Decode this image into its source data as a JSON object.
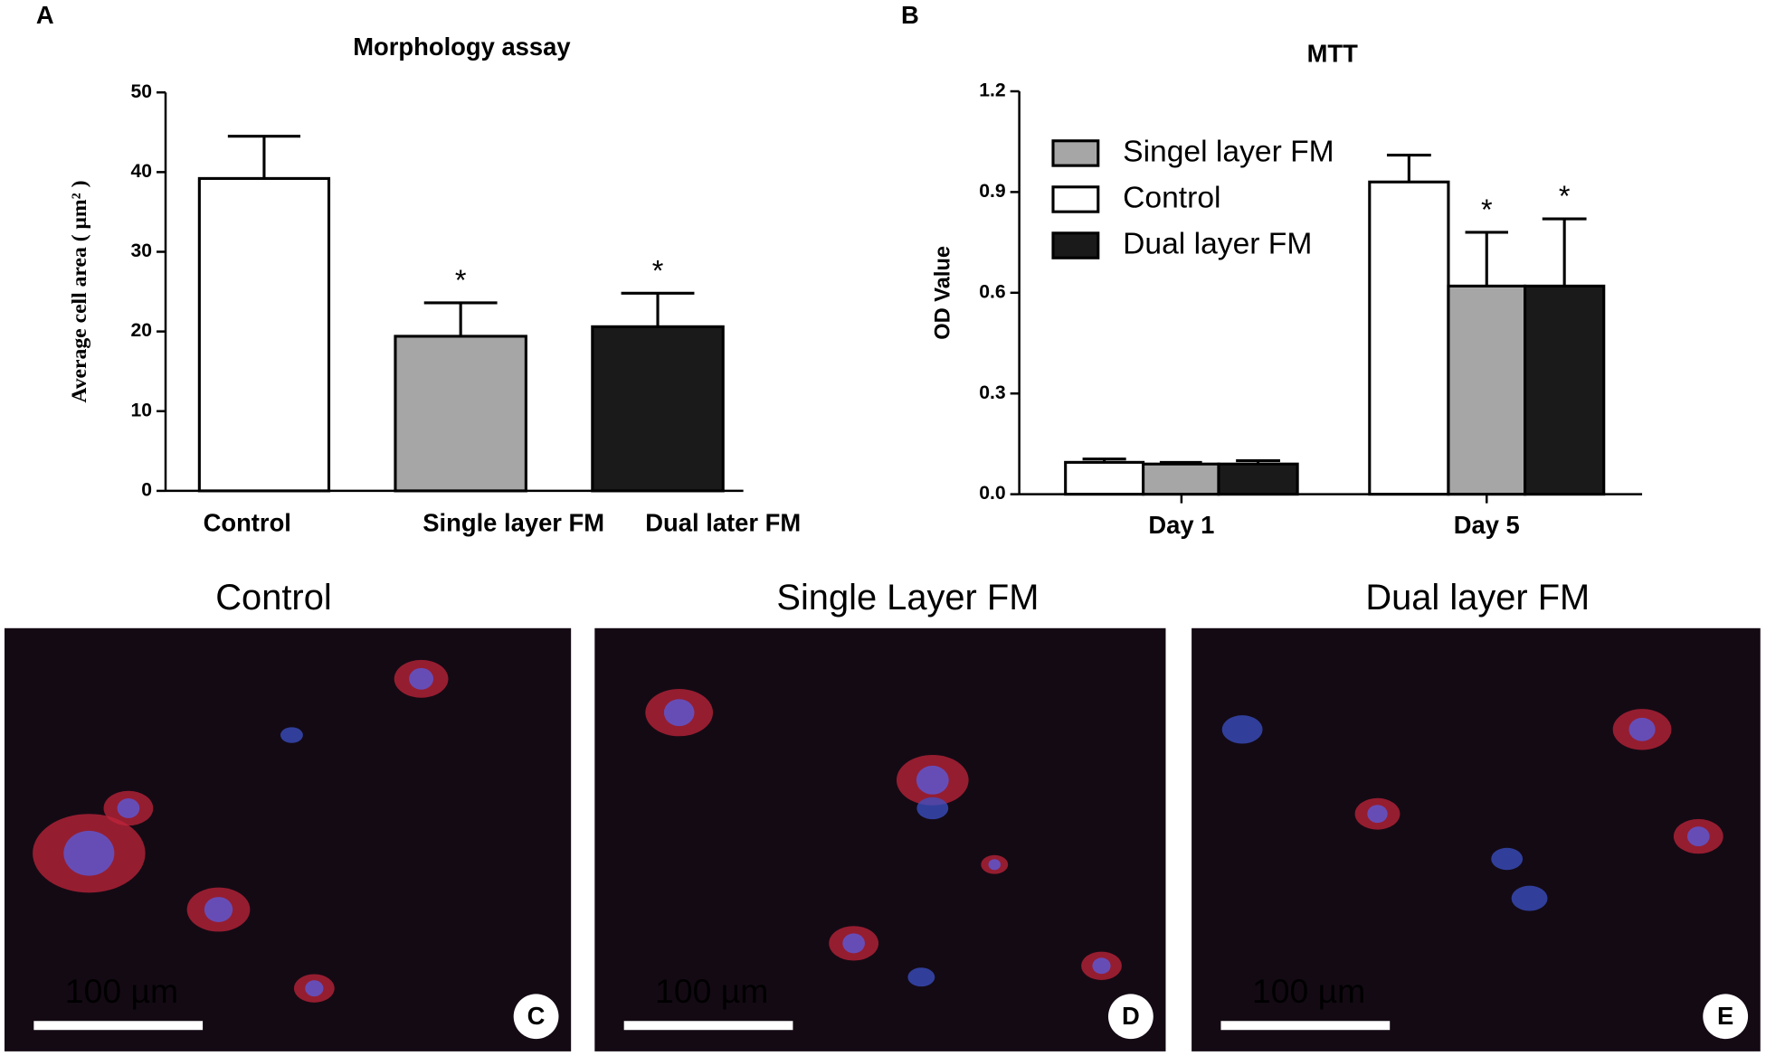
{
  "chart_data": [
    {
      "type": "bar",
      "panel": "A",
      "title": "Morphology assay",
      "ylabel": "Average cell area ( μm² )",
      "categories": [
        "Control",
        "Single layer FM",
        "Dual later FM"
      ],
      "values": [
        39.2,
        19.4,
        20.6
      ],
      "errors": [
        5.3,
        4.2,
        4.2
      ],
      "colors": [
        "#ffffff",
        "#a6a6a6",
        "#1a1a1a"
      ],
      "annotations": [
        null,
        "*",
        "*"
      ],
      "ylim": [
        0,
        50
      ],
      "yticks": [
        0,
        10,
        20,
        30,
        40,
        50
      ]
    },
    {
      "type": "grouped_bar",
      "panel": "B",
      "title": "MTT",
      "ylabel": "OD Value",
      "categories": [
        "Day 1",
        "Day 5"
      ],
      "series": [
        {
          "name": "Singel layer FM",
          "color": "#a6a6a6",
          "values": [
            0.09,
            0.62
          ],
          "errors": [
            0.005,
            0.16
          ],
          "annotations": [
            null,
            "*"
          ]
        },
        {
          "name": "Control",
          "color": "#ffffff",
          "values": [
            0.095,
            0.93
          ],
          "errors": [
            0.01,
            0.08
          ],
          "annotations": [
            null,
            null
          ]
        },
        {
          "name": "Dual layer FM",
          "color": "#1a1a1a",
          "values": [
            0.09,
            0.62
          ],
          "errors": [
            0.01,
            0.2
          ],
          "annotations": [
            null,
            "*"
          ]
        }
      ],
      "ylim": [
        0,
        1.2
      ],
      "yticks": [
        {
          "value": 0,
          "label": "0.0"
        },
        0.3,
        0.6,
        0.9,
        {
          "value": 1.2,
          "label": "1.2"
        }
      ]
    }
  ],
  "images": [
    {
      "title": "Control",
      "scale": "100 µm",
      "letter": "C"
    },
    {
      "title": "Single Layer FM",
      "scale": "100 µm",
      "letter": "D"
    },
    {
      "title": "Dual layer FM",
      "scale": "100 µm",
      "letter": "E"
    }
  ]
}
